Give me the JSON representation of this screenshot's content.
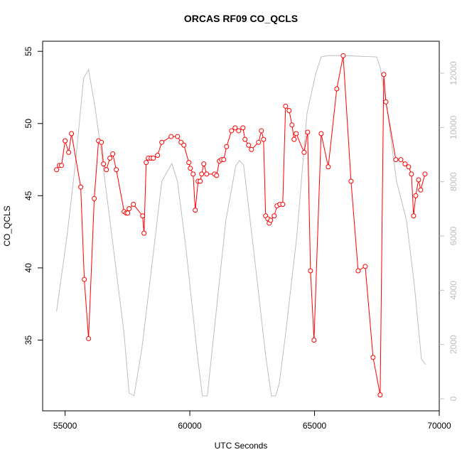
{
  "chart_data": {
    "type": "line",
    "title": "ORCAS RF09 CO_QCLS",
    "x_label": "UTC Seconds",
    "y_label": "CO_QCLS",
    "xlim": [
      54100,
      70000
    ],
    "xticks": [
      55000,
      60000,
      65000,
      70000
    ],
    "ylim": [
      30.1,
      55.7
    ],
    "yticks": [
      35,
      40,
      45,
      50,
      55
    ],
    "y2lim": [
      -445,
      13180
    ],
    "y2ticks": [
      0,
      2000,
      4000,
      6000,
      8000,
      10000,
      12000
    ],
    "y2_color": "#bebebe",
    "series": [
      {
        "color": "#ff0000",
        "markers": true,
        "x": [
          54658,
          54772,
          54857,
          55000,
          55143,
          55257,
          55627,
          55770,
          55941,
          56169,
          56340,
          56454,
          56540,
          56654,
          56796,
          56910,
          57053,
          57367,
          57452,
          57509,
          57566,
          57737,
          58108,
          58165,
          58251,
          58336,
          58450,
          58536,
          58707,
          58878,
          59249,
          59505,
          59648,
          59763,
          59962,
          60019,
          60133,
          60218,
          60333,
          60418,
          60475,
          60561,
          60675,
          60989,
          61074,
          61188,
          61274,
          61360,
          61474,
          61673,
          61816,
          61959,
          62130,
          62214,
          62357,
          62471,
          62756,
          62870,
          62956,
          63040,
          63126,
          63183,
          63240,
          63383,
          63497,
          63611,
          63725,
          63839,
          63982,
          64096,
          64181,
          64267,
          64581,
          64723,
          64838,
          64980,
          65265,
          65550,
          65892,
          66149,
          66463,
          66748,
          67033,
          67347,
          67632,
          67775,
          67860,
          68258,
          68458,
          68629,
          68772,
          68886,
          68971,
          69057,
          69171,
          69256,
          69427
        ],
        "values": [
          46.8,
          47.1,
          47.1,
          48.8,
          48.0,
          49.3,
          45.6,
          39.2,
          35.1,
          44.8,
          48.8,
          48.7,
          47.2,
          46.8,
          47.6,
          47.9,
          46.8,
          43.9,
          43.8,
          43.8,
          44.1,
          44.4,
          43.6,
          42.4,
          47.3,
          47.6,
          47.6,
          47.6,
          47.8,
          48.7,
          49.1,
          49.1,
          48.7,
          48.5,
          47.3,
          46.9,
          46.5,
          44.0,
          46.0,
          46.0,
          46.5,
          47.2,
          46.5,
          46.5,
          46.4,
          47.4,
          47.5,
          47.5,
          48.4,
          49.5,
          49.7,
          49.5,
          49.7,
          48.9,
          48.5,
          48.2,
          48.7,
          49.5,
          48.9,
          43.6,
          43.4,
          43.1,
          43.3,
          43.6,
          44.3,
          44.4,
          44.4,
          51.2,
          50.9,
          49.9,
          48.9,
          49.3,
          48.0,
          49.4,
          39.8,
          35.0,
          49.3,
          47.0,
          52.4,
          54.7,
          46.0,
          39.8,
          40.1,
          33.8,
          31.2,
          53.4,
          51.5,
          47.5,
          47.5,
          47.2,
          47.0,
          46.5,
          43.6,
          45.0,
          46.1,
          45.4,
          46.5
        ]
      },
      {
        "color": "#bebebe",
        "axis": "y2",
        "markers": false,
        "x": [
          54658,
          55086,
          55428,
          55742,
          55941,
          56197,
          56511,
          56939,
          57367,
          57566,
          57766,
          58080,
          58422,
          58878,
          59278,
          59505,
          59848,
          60304,
          60504,
          60703,
          60932,
          61445,
          61844,
          61987,
          62158,
          62586,
          63040,
          63269,
          63440,
          63583,
          63839,
          64296,
          64695,
          65037,
          65265,
          65550,
          66064,
          67490,
          67632,
          67917,
          68287,
          68686,
          69000,
          69285,
          69456
        ],
        "values": [
          3222,
          6052,
          8803,
          11816,
          12130,
          10768,
          8672,
          5528,
          2384,
          210,
          105,
          1860,
          4480,
          8017,
          8672,
          8017,
          5528,
          1598,
          105,
          105,
          2122,
          6576,
          8593,
          8777,
          8619,
          5266,
          1598,
          105,
          105,
          550,
          2384,
          6052,
          10506,
          11947,
          12602,
          12654,
          12654,
          12602,
          12209,
          10637,
          8017,
          6576,
          4218,
          1467,
          1258
        ]
      }
    ]
  }
}
